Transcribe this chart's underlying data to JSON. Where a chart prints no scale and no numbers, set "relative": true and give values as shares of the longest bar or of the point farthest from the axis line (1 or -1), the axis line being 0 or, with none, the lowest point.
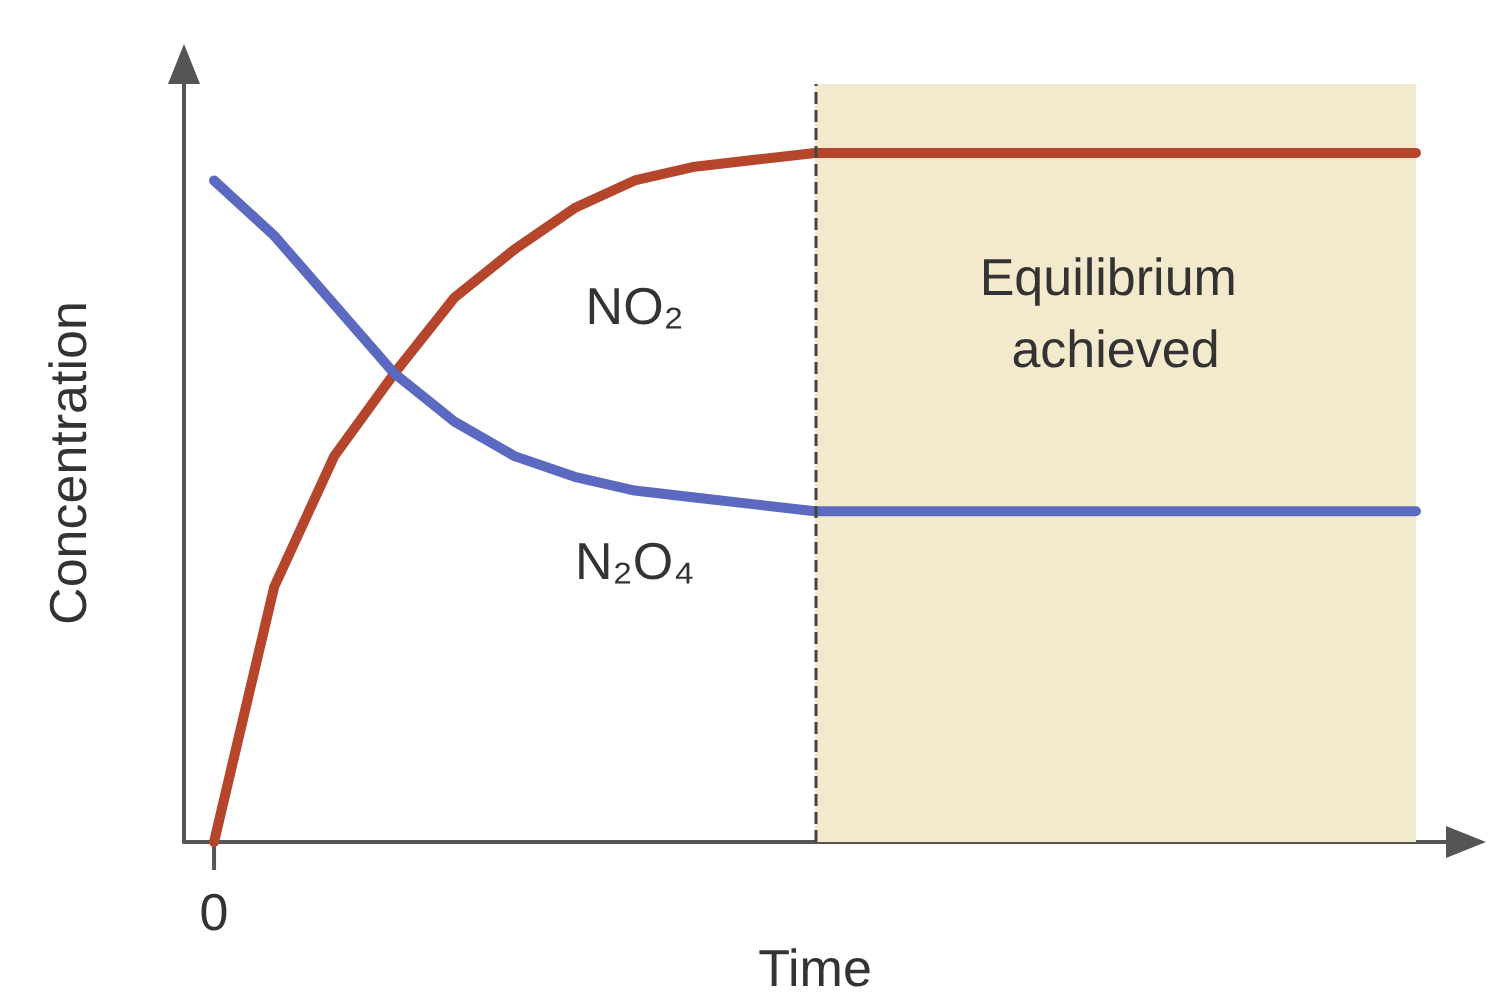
{
  "chart_data": {
    "type": "line",
    "relative": true,
    "xlabel": "Time",
    "ylabel": "Concentration",
    "annotations": [
      "0",
      "Equilibrium achieved"
    ],
    "categories": [
      null,
      null,
      null,
      null,
      null,
      null,
      null,
      null,
      null,
      null,
      null,
      null,
      null,
      null,
      null,
      null,
      null,
      null,
      null,
      null,
      null
    ],
    "series": [
      {
        "name": "NO₂",
        "color": "#b5462b",
        "values": [
          0,
          0.37,
          0.56,
          0.68,
          0.79,
          0.86,
          0.92,
          0.96,
          0.98,
          0.99,
          1,
          1,
          1,
          1,
          1,
          1,
          1,
          1,
          1,
          1,
          1
        ]
      },
      {
        "name": "N₂O₄",
        "color": "#5b6ac0",
        "values": [
          0.96,
          0.88,
          0.78,
          0.68,
          0.61,
          0.56,
          0.53,
          0.51,
          0.5,
          0.49,
          0.48,
          0.48,
          0.48,
          0.48,
          0.48,
          0.48,
          0.48,
          0.48,
          0.48,
          0.48,
          0.48
        ]
      }
    ],
    "ref_lines": [
      {
        "axis": "x",
        "line_style": "dashed",
        "color": "#444444"
      }
    ],
    "marker": "none",
    "line_style": "solid",
    "grid": false,
    "legend": false
  }
}
